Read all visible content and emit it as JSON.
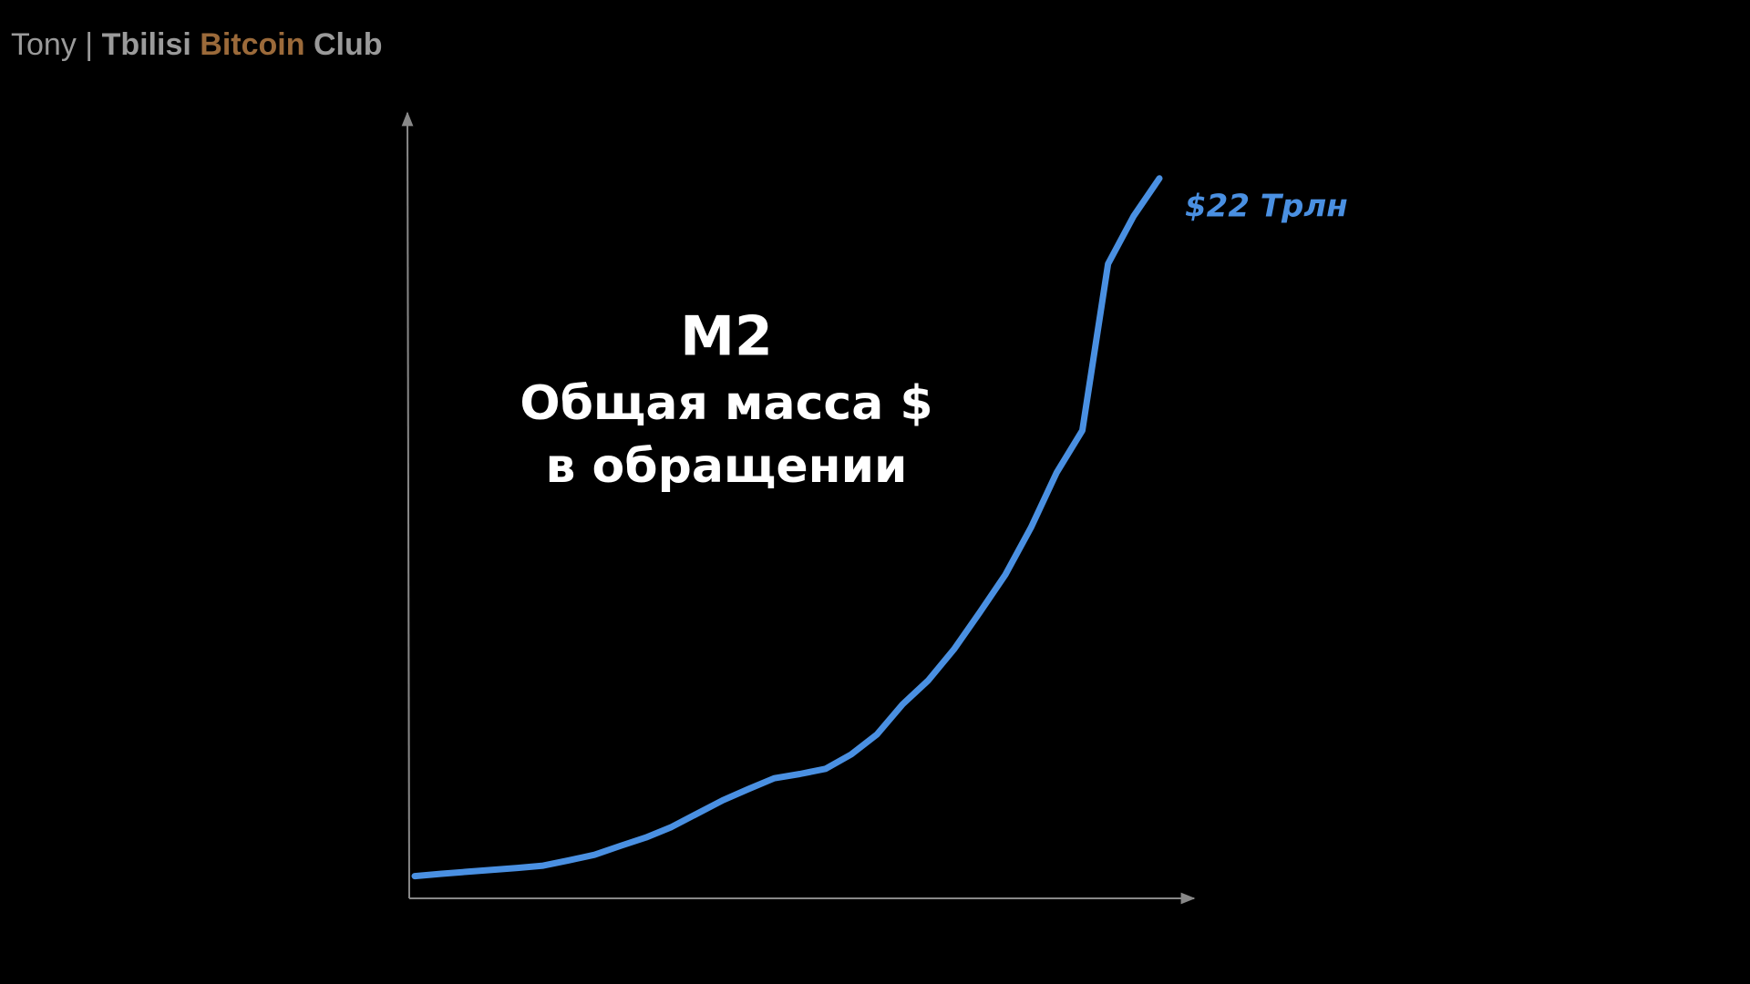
{
  "header": {
    "author": "Tony",
    "separator": "|",
    "city": "Tbilisi",
    "brand": "Bitcoin",
    "club": "Club"
  },
  "chart_data": {
    "type": "line",
    "title": "M2",
    "subtitle": [
      "Общая масса $",
      "в обращении"
    ],
    "annotation": "$22 Трлн",
    "color": "#4a90e2",
    "ylim": [
      0,
      24
    ],
    "values": [
      0.68,
      0.75,
      0.81,
      0.87,
      0.93,
      1.0,
      1.16,
      1.33,
      1.6,
      1.86,
      2.18,
      2.59,
      3.0,
      3.34,
      3.67,
      3.8,
      3.96,
      4.4,
      5.01,
      5.93,
      6.66,
      7.61,
      8.73,
      9.89,
      11.33,
      13.01,
      14.3,
      19.39,
      20.85,
      22.0
    ]
  }
}
